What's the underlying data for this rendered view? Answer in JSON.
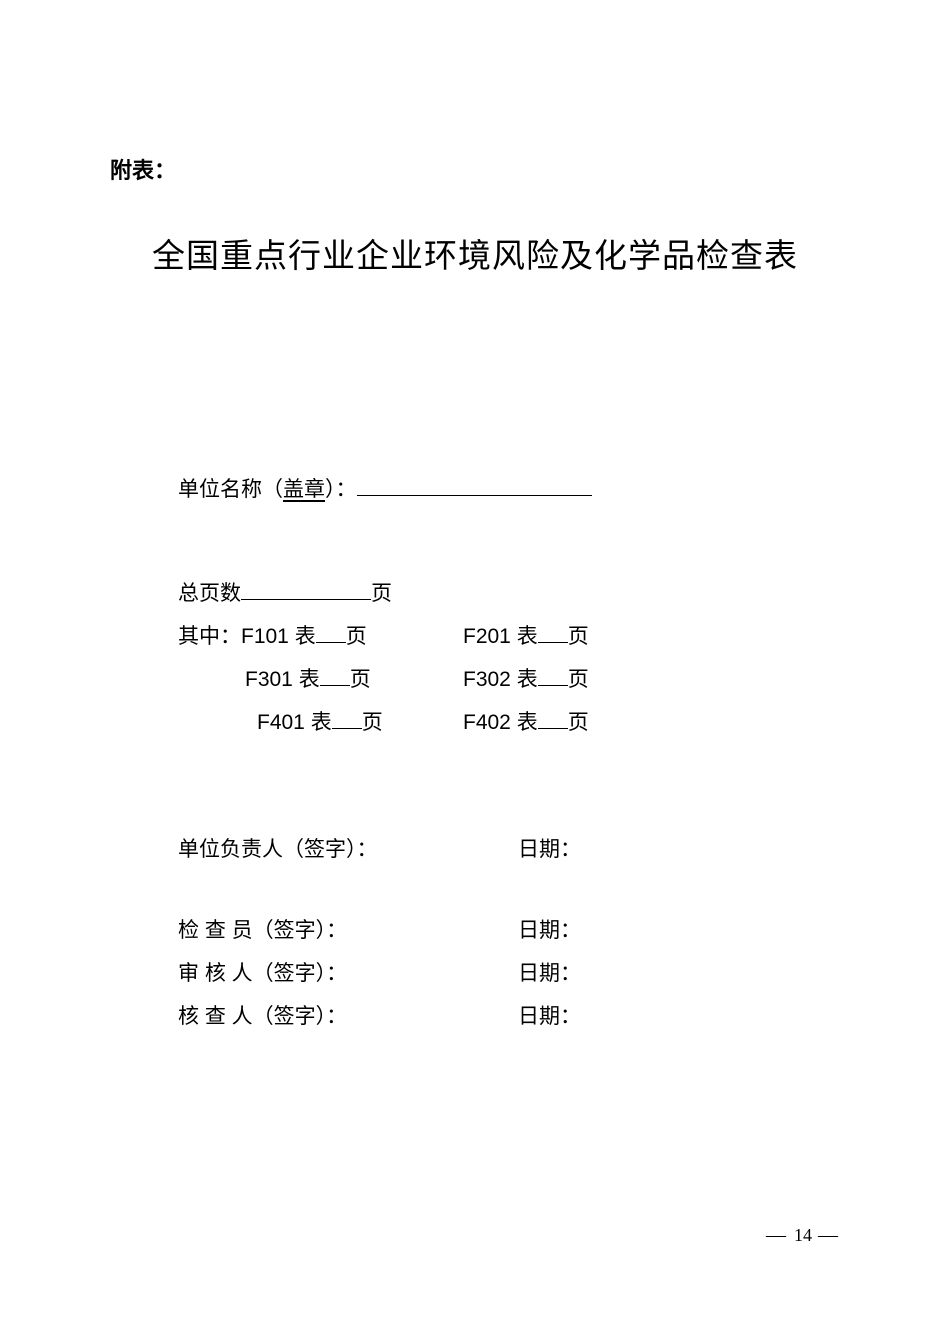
{
  "attach_label": "附表：",
  "title": "全国重点行业企业环境风险及化学品检查表",
  "unit_name_label_pre": "单位名称（",
  "unit_name_stamp": "盖章",
  "unit_name_label_post": "）：",
  "total_pages_label_pre": "总页数",
  "total_pages_label_post": "页",
  "where_prefix": "其中：",
  "forms": {
    "r0": {
      "l": "F101 表",
      "r": "F201 表"
    },
    "r1": {
      "l": "F301 表",
      "r": "F302 表"
    },
    "r2": {
      "l": "F401 表",
      "r": "F402 表"
    }
  },
  "page_unit": "页",
  "signatures": {
    "unit_head": "单位负责人（签字）：",
    "inspector": "检 查 员（签字）：",
    "reviewer": "审 核 人（签字）：",
    "verifier": "核 查 人（签字）："
  },
  "date_label": "日期：",
  "page_number": "14",
  "colors": {
    "text": "#000000",
    "bg": "#ffffff"
  }
}
